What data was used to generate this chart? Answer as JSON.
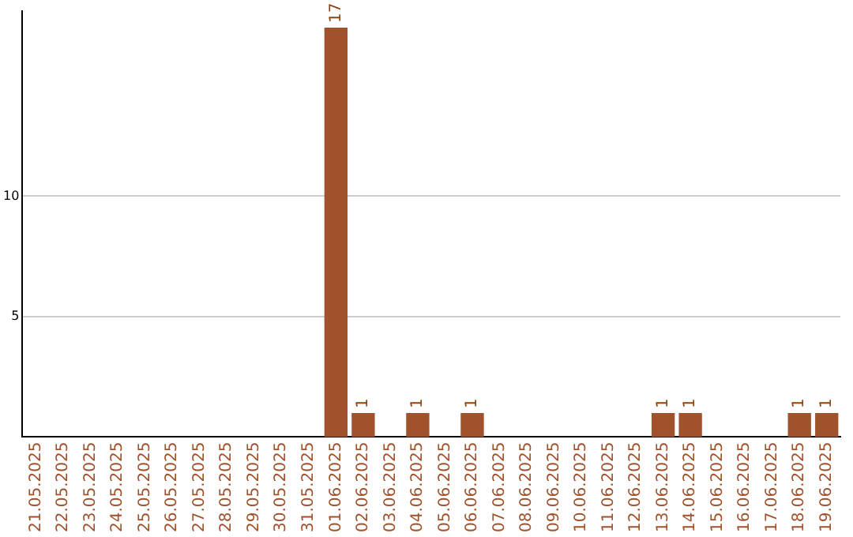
{
  "chart_data": {
    "type": "bar",
    "categories": [
      "21.05.2025",
      "22.05.2025",
      "23.05.2025",
      "24.05.2025",
      "25.05.2025",
      "26.05.2025",
      "27.05.2025",
      "28.05.2025",
      "29.05.2025",
      "30.05.2025",
      "31.05.2025",
      "01.06.2025",
      "02.06.2025",
      "03.06.2025",
      "04.06.2025",
      "05.06.2025",
      "06.06.2025",
      "07.06.2025",
      "08.06.2025",
      "09.06.2025",
      "10.06.2025",
      "11.06.2025",
      "12.06.2025",
      "13.06.2025",
      "14.06.2025",
      "15.06.2025",
      "16.06.2025",
      "17.06.2025",
      "18.06.2025",
      "19.06.2025"
    ],
    "values": [
      0,
      0,
      0,
      0,
      0,
      0,
      0,
      0,
      0,
      0,
      0,
      17,
      1,
      0,
      1,
      0,
      1,
      0,
      0,
      0,
      0,
      0,
      0,
      1,
      1,
      0,
      0,
      0,
      1,
      1
    ],
    "value_labels": [
      null,
      null,
      null,
      null,
      null,
      null,
      null,
      null,
      null,
      null,
      null,
      "17",
      "1",
      null,
      "1",
      null,
      "1",
      null,
      null,
      null,
      null,
      null,
      null,
      "1",
      "1",
      null,
      null,
      null,
      "1",
      "1"
    ],
    "color": "#a0522d",
    "ylim": [
      0,
      17.7
    ],
    "yticks": [
      5,
      10
    ],
    "grid": "y",
    "legend": false
  }
}
